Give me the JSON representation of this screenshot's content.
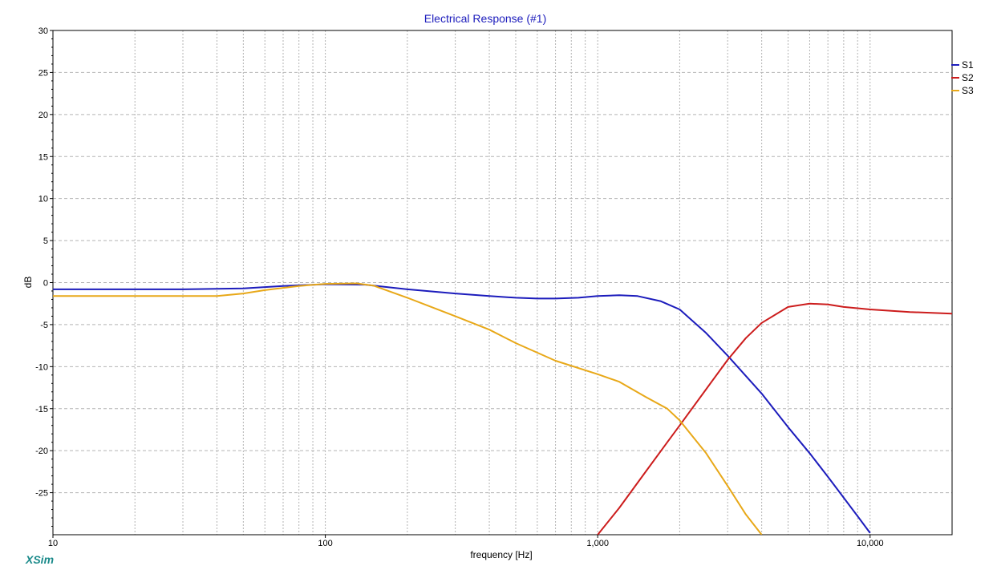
{
  "branding": {
    "logo_text": "XSim"
  },
  "chart_data": {
    "type": "line",
    "title": "Electrical Response (#1)",
    "xlabel": "frequency [Hz]",
    "ylabel": "dB",
    "xscale": "log",
    "xlim": [
      10,
      20000
    ],
    "ylim": [
      -30,
      30
    ],
    "xticks": [
      {
        "value": 10,
        "label": "10"
      },
      {
        "value": 100,
        "label": "100"
      },
      {
        "value": 1000,
        "label": "1,000"
      },
      {
        "value": 10000,
        "label": "10,000"
      }
    ],
    "yticks": [
      30,
      25,
      20,
      15,
      10,
      5,
      0,
      -5,
      -10,
      -15,
      -20,
      -25
    ],
    "grid": true,
    "legend_position": "right",
    "series": [
      {
        "name": "S1",
        "color": "#1c1cbc",
        "points": [
          [
            10,
            -0.8
          ],
          [
            20,
            -0.8
          ],
          [
            30,
            -0.8
          ],
          [
            50,
            -0.7
          ],
          [
            70,
            -0.4
          ],
          [
            100,
            -0.2
          ],
          [
            140,
            -0.25
          ],
          [
            200,
            -0.8
          ],
          [
            300,
            -1.3
          ],
          [
            400,
            -1.6
          ],
          [
            500,
            -1.8
          ],
          [
            600,
            -1.9
          ],
          [
            700,
            -1.9
          ],
          [
            850,
            -1.8
          ],
          [
            1000,
            -1.6
          ],
          [
            1200,
            -1.5
          ],
          [
            1400,
            -1.6
          ],
          [
            1700,
            -2.2
          ],
          [
            2000,
            -3.2
          ],
          [
            2500,
            -6
          ],
          [
            3000,
            -8.7
          ],
          [
            4000,
            -13.2
          ],
          [
            5000,
            -17.2
          ],
          [
            6000,
            -20.3
          ],
          [
            7000,
            -23.1
          ],
          [
            8000,
            -25.6
          ],
          [
            9000,
            -27.8
          ],
          [
            10000,
            -29.8
          ]
        ]
      },
      {
        "name": "S2",
        "color": "#cc1c1c",
        "points": [
          [
            1000,
            -30
          ],
          [
            1200,
            -26.8
          ],
          [
            1500,
            -22.5
          ],
          [
            1800,
            -19
          ],
          [
            2000,
            -17
          ],
          [
            2500,
            -12.7
          ],
          [
            3000,
            -9.2
          ],
          [
            3500,
            -6.6
          ],
          [
            4000,
            -4.8
          ],
          [
            5000,
            -2.9
          ],
          [
            6000,
            -2.5
          ],
          [
            7000,
            -2.6
          ],
          [
            8000,
            -2.9
          ],
          [
            10000,
            -3.2
          ],
          [
            14000,
            -3.5
          ],
          [
            20000,
            -3.7
          ]
        ]
      },
      {
        "name": "S3",
        "color": "#e8a818",
        "points": [
          [
            10,
            -1.6
          ],
          [
            20,
            -1.6
          ],
          [
            30,
            -1.6
          ],
          [
            40,
            -1.6
          ],
          [
            50,
            -1.3
          ],
          [
            60,
            -0.9
          ],
          [
            80,
            -0.4
          ],
          [
            100,
            -0.15
          ],
          [
            130,
            -0.1
          ],
          [
            150,
            -0.35
          ],
          [
            200,
            -1.8
          ],
          [
            300,
            -4
          ],
          [
            400,
            -5.6
          ],
          [
            500,
            -7.2
          ],
          [
            700,
            -9.3
          ],
          [
            1000,
            -10.9
          ],
          [
            1200,
            -11.8
          ],
          [
            1500,
            -13.6
          ],
          [
            1800,
            -15
          ],
          [
            2000,
            -16.4
          ],
          [
            2500,
            -20.3
          ],
          [
            3000,
            -24.2
          ],
          [
            3500,
            -27.6
          ],
          [
            4000,
            -30
          ]
        ]
      }
    ]
  }
}
